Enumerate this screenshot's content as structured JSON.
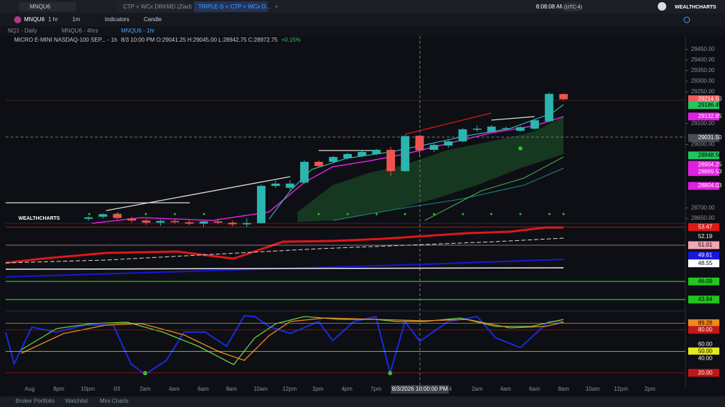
{
  "top_bar": {
    "search": "MNQU6",
    "tabs": [
      "CTP + WCx DRKMD (Ziad)",
      "TRIPLE-S + CTP + WCx D..."
    ],
    "clock": "8:08:08 AM",
    "timezone": "(UTC-4)",
    "brand": "WEALTHCHARTS"
  },
  "toolbar": {
    "symbol": "MNQU6",
    "interval": "1 hr",
    "sub_interval": "1m",
    "indicators": "Indicators",
    "chart_style": "Candle"
  },
  "chart_tabs": [
    "NQ1 - Daily",
    "MNQU6 - 4hrs",
    "MNQU6 - 1hr"
  ],
  "legend": {
    "symbol": "MICRO E-MINI NASDAQ-100 SEP... - 1h",
    "bar_time": "8/3 10:00 PM",
    "open": "O:29041.25",
    "high": "H:29045.00",
    "low": "L:28942.75",
    "close": "C:28972.75",
    "change": "+0.15%"
  },
  "watermark": "WEALTHCHARTS",
  "price_pane": {
    "ylim": [
      28627,
      29477
    ],
    "ticks": [
      {
        "value": 29450,
        "label": "29450.00"
      },
      {
        "value": 29400,
        "label": "29400.00"
      },
      {
        "value": 29350,
        "label": "29350.00"
      },
      {
        "value": 29300,
        "label": "29300.00"
      },
      {
        "value": 29250,
        "label": "29250.00"
      },
      {
        "value": 29100,
        "label": "29100.00"
      },
      {
        "value": 29000,
        "label": "29000.00"
      },
      {
        "value": 28700,
        "label": "28700.00"
      },
      {
        "value": 28650,
        "label": "28650.00"
      }
    ],
    "tags": [
      {
        "value": 29214.5,
        "label": "29214.50",
        "color": "#f05a5a"
      },
      {
        "value": 29186.45,
        "label": "29186.45",
        "color": "#22c55e"
      },
      {
        "value": 29132.85,
        "label": "29132.85",
        "color": "#e020e0"
      },
      {
        "value": 29031.5,
        "label": "29031.50",
        "color": "#4a4e58"
      },
      {
        "value": 28948.5,
        "label": "28948.50",
        "color": "#22c55e"
      },
      {
        "value": 28904.25,
        "label": "28904.25",
        "color": "#e020e0"
      },
      {
        "value": 28869.53,
        "label": "28869.53",
        "color": "#e020e0"
      },
      {
        "value": 28804.03,
        "label": "28804.03",
        "color": "#e020e0"
      }
    ],
    "candles": [
      {
        "o": 28648,
        "h": 28660,
        "l": 28640,
        "c": 28655
      },
      {
        "o": 28658,
        "h": 28675,
        "l": 28650,
        "c": 28670
      },
      {
        "o": 28672,
        "h": 28678,
        "l": 28645,
        "c": 28652
      },
      {
        "o": 28650,
        "h": 28658,
        "l": 28630,
        "c": 28640
      },
      {
        "o": 28640,
        "h": 28648,
        "l": 28620,
        "c": 28630
      },
      {
        "o": 28630,
        "h": 28645,
        "l": 28615,
        "c": 28638
      },
      {
        "o": 28638,
        "h": 28650,
        "l": 28625,
        "c": 28632
      },
      {
        "o": 28632,
        "h": 28642,
        "l": 28618,
        "c": 28625
      },
      {
        "o": 28625,
        "h": 28640,
        "l": 28610,
        "c": 28636
      },
      {
        "o": 28636,
        "h": 28648,
        "l": 28622,
        "c": 28630
      },
      {
        "o": 28630,
        "h": 28640,
        "l": 28612,
        "c": 28622
      },
      {
        "o": 28622,
        "h": 28650,
        "l": 28610,
        "c": 28628
      },
      {
        "o": 28628,
        "h": 28810,
        "l": 28625,
        "c": 28804
      },
      {
        "o": 28804,
        "h": 28830,
        "l": 28795,
        "c": 28815
      },
      {
        "o": 28795,
        "h": 28830,
        "l": 28785,
        "c": 28815
      },
      {
        "o": 28820,
        "h": 28925,
        "l": 28815,
        "c": 28918
      },
      {
        "o": 28918,
        "h": 28925,
        "l": 28890,
        "c": 28898
      },
      {
        "o": 28918,
        "h": 28945,
        "l": 28910,
        "c": 28941
      },
      {
        "o": 28935,
        "h": 28960,
        "l": 28930,
        "c": 28955
      },
      {
        "o": 28945,
        "h": 28970,
        "l": 28940,
        "c": 28965
      },
      {
        "o": 28955,
        "h": 28980,
        "l": 28950,
        "c": 28975
      },
      {
        "o": 28975,
        "h": 28988,
        "l": 28850,
        "c": 28874
      },
      {
        "o": 28874,
        "h": 29045,
        "l": 28870,
        "c": 29040
      },
      {
        "o": 29041.25,
        "h": 29045,
        "l": 28942.75,
        "c": 28972.75
      },
      {
        "o": 28975,
        "h": 29005,
        "l": 28965,
        "c": 28998
      },
      {
        "o": 28995,
        "h": 29020,
        "l": 28985,
        "c": 29015
      },
      {
        "o": 29015,
        "h": 29078,
        "l": 29010,
        "c": 29072
      },
      {
        "o": 29070,
        "h": 29090,
        "l": 29060,
        "c": 29075
      },
      {
        "o": 29060,
        "h": 29092,
        "l": 29055,
        "c": 29085
      },
      {
        "o": 29075,
        "h": 29085,
        "l": 29068,
        "c": 29078
      },
      {
        "o": 29065,
        "h": 29088,
        "l": 29060,
        "c": 29082
      },
      {
        "o": 29075,
        "h": 29120,
        "l": 29070,
        "c": 29115
      },
      {
        "o": 29110,
        "h": 29245,
        "l": 29105,
        "c": 29240
      },
      {
        "o": 29239,
        "h": 29242,
        "l": 29210,
        "c": 29214.5
      }
    ],
    "up_color": "#2bb5ad",
    "down_color": "#ef5350"
  },
  "osc_pane": {
    "ylim": [
      42.1,
      53.98
    ],
    "tags": [
      {
        "value": 53.47,
        "label": "53.47",
        "color": "#e01818"
      },
      {
        "value": 52.19,
        "label": "52.19",
        "color": "#0d0f14"
      },
      {
        "value": 51.01,
        "label": "51.01",
        "color": "#f4a6b4"
      },
      {
        "value": 49.61,
        "label": "49.61",
        "color": "#1818d8"
      },
      {
        "value": 48.55,
        "label": "48.55",
        "color": "#ffffff"
      },
      {
        "value": 46.09,
        "label": "46.09",
        "color": "#22c51e"
      },
      {
        "value": 43.64,
        "label": "43.64",
        "color": "#22c51e"
      }
    ]
  },
  "stoch_pane": {
    "ylim": [
      0,
      105.5
    ],
    "tags": [
      {
        "value": 89.28,
        "label": "89.28",
        "color": "#f08a20"
      },
      {
        "value": 80,
        "label": "80.00",
        "color": "#c01818"
      },
      {
        "value": 60,
        "label": "60.00",
        "color": "#0d0f14"
      },
      {
        "value": 50,
        "label": "50.00",
        "color": "#e8e820"
      },
      {
        "value": 40,
        "label": "40.00",
        "color": "#0d0f14"
      },
      {
        "value": 20,
        "label": "20.00",
        "color": "#c01818"
      }
    ]
  },
  "crosshair_time": "8/3/2026 10:00:00 PM",
  "x_labels": [
    "Aug",
    "8pm",
    "10pm",
    "03",
    "2am",
    "4am",
    "6am",
    "8am",
    "10am",
    "12pm",
    "2pm",
    "4pm",
    "7pm",
    "4",
    "2am",
    "4am",
    "6am",
    "8am",
    "10am",
    "12pm",
    "2pm"
  ],
  "bottom_bar": [
    "Broker Portfolio",
    "Watchlist",
    "Mini Charts"
  ]
}
